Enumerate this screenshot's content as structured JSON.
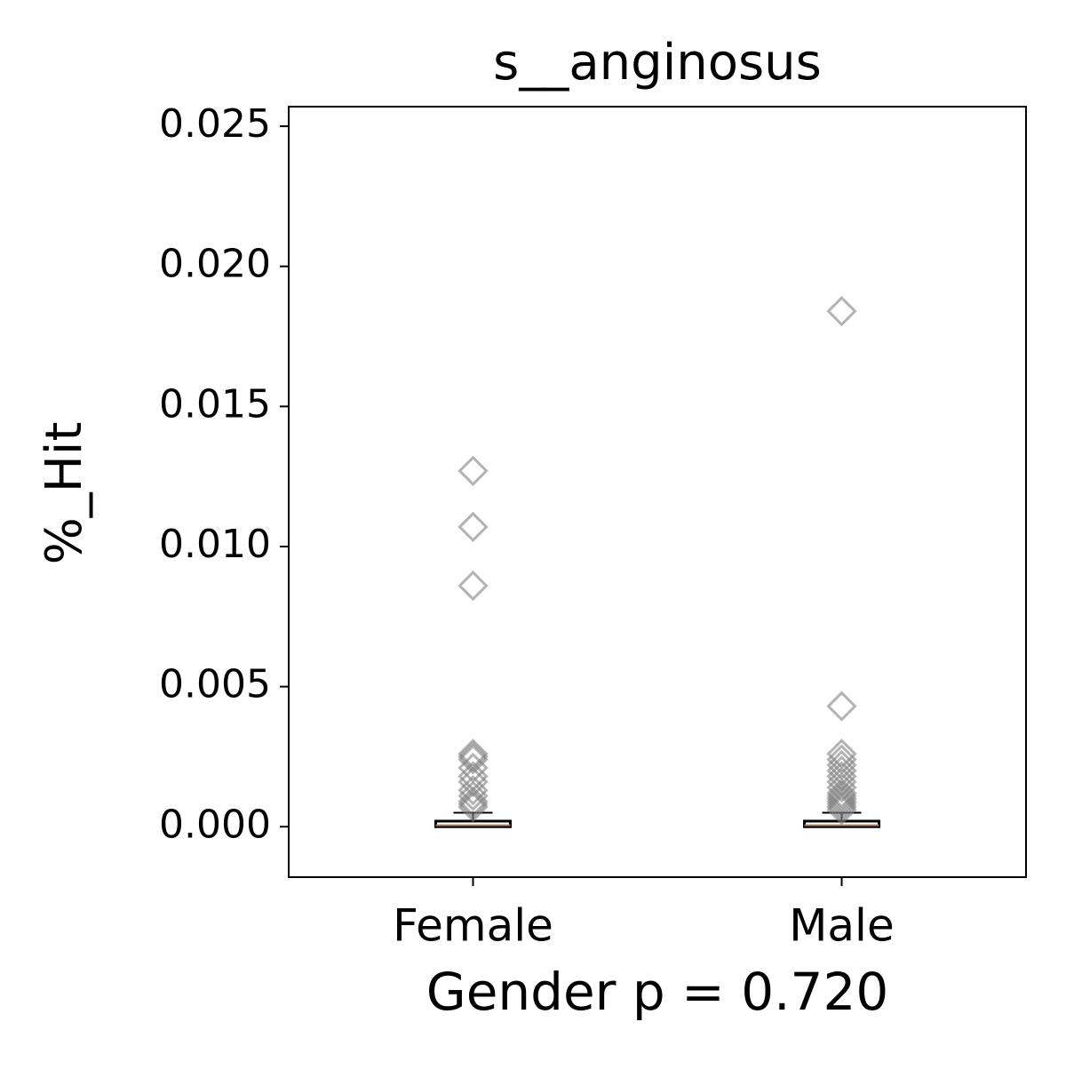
{
  "chart_data": {
    "type": "box",
    "title": "s__anginosus",
    "y_label": "%_Hit",
    "x_label": "Gender p = 0.720",
    "categories": [
      "Female",
      "Male"
    ],
    "boxes": [
      {
        "whisker_low": 0,
        "q1": 0,
        "median": 5e-05,
        "q3": 0.0002,
        "whisker_high": 0.0005,
        "outliers": [
          0.0127,
          0.0107,
          0.0086,
          0.0026,
          0.0025,
          0.0024,
          0.0021,
          0.0018,
          0.0016,
          0.0013,
          0.0011,
          0.0009,
          0.0008,
          0.0007
        ]
      },
      {
        "whisker_low": 0,
        "q1": 0,
        "median": 5e-05,
        "q3": 0.0002,
        "whisker_high": 0.0005,
        "outliers": [
          0.0184,
          0.0043,
          0.0026,
          0.0024,
          0.0022,
          0.002,
          0.0018,
          0.0016,
          0.0014,
          0.0012,
          0.0011,
          0.001,
          0.0009,
          0.0008,
          0.0007,
          0.0006
        ]
      }
    ],
    "ylim": [
      -0.0018,
      0.0257
    ],
    "yticks": [
      {
        "value": 0,
        "label": "0.000"
      },
      0.005,
      {
        "value": 0.01,
        "label": "0.010"
      },
      0.015,
      {
        "value": 0.02,
        "label": "0.020"
      },
      0.025
    ],
    "box_color": "#000000",
    "median_color": "#b07a5a",
    "outlier_color": "#808080"
  }
}
